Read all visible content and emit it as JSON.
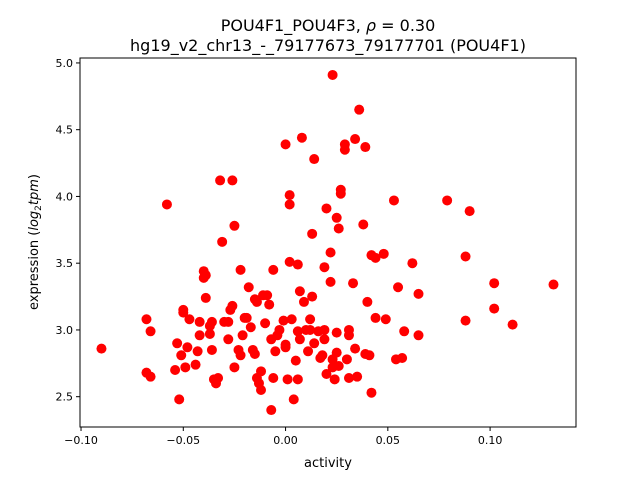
{
  "chart_data": {
    "type": "scatter",
    "title_line1_prefix": "POU4F1_POU4F3, ",
    "title_rho_symbol": "ρ",
    "title_rho_value": " = 0.30",
    "title_line2": "hg19_v2_chr13_-_79177673_79177701 (POU4F1)",
    "xlabel": "activity",
    "ylabel_prefix": "expression (",
    "ylabel_log": "log",
    "ylabel_sub": "2",
    "ylabel_tpm": "tpm",
    "ylabel_suffix": ")",
    "xlim": [
      -0.1005,
      0.142
    ],
    "ylim": [
      2.273,
      5.037
    ],
    "xticks": [
      -0.1,
      -0.05,
      0.0,
      0.05,
      0.1
    ],
    "xtick_labels": [
      "−0.10",
      "−0.05",
      "0.00",
      "0.05",
      "0.10"
    ],
    "yticks": [
      2.5,
      3.0,
      3.5,
      4.0,
      4.5,
      5.0
    ],
    "ytick_labels": [
      "2.5",
      "3.0",
      "3.5",
      "4.0",
      "4.5",
      "5.0"
    ],
    "grid": false,
    "marker_color": "#ff0000",
    "points": [
      [
        -0.09,
        2.86
      ],
      [
        -0.068,
        3.08
      ],
      [
        -0.066,
        2.99
      ],
      [
        -0.068,
        2.68
      ],
      [
        -0.066,
        2.65
      ],
      [
        -0.058,
        3.94
      ],
      [
        -0.054,
        2.7
      ],
      [
        -0.053,
        2.9
      ],
      [
        -0.051,
        2.81
      ],
      [
        -0.05,
        3.13
      ],
      [
        -0.05,
        3.15
      ],
      [
        -0.048,
        2.87
      ],
      [
        -0.047,
        3.08
      ],
      [
        -0.049,
        2.72
      ],
      [
        -0.044,
        2.74
      ],
      [
        -0.043,
        2.84
      ],
      [
        -0.042,
        2.96
      ],
      [
        -0.042,
        3.06
      ],
      [
        -0.04,
        3.39
      ],
      [
        -0.04,
        3.44
      ],
      [
        -0.039,
        3.41
      ],
      [
        -0.039,
        3.24
      ],
      [
        -0.037,
        3.03
      ],
      [
        -0.037,
        2.97
      ],
      [
        -0.036,
        3.06
      ],
      [
        -0.036,
        2.85
      ],
      [
        -0.035,
        2.63
      ],
      [
        -0.034,
        2.6
      ],
      [
        -0.033,
        2.64
      ],
      [
        -0.032,
        4.12
      ],
      [
        -0.031,
        3.66
      ],
      [
        -0.03,
        3.06
      ],
      [
        -0.028,
        2.93
      ],
      [
        -0.028,
        3.06
      ],
      [
        -0.027,
        3.15
      ],
      [
        -0.026,
        3.18
      ],
      [
        -0.026,
        4.12
      ],
      [
        -0.025,
        3.78
      ],
      [
        -0.025,
        2.72
      ],
      [
        -0.023,
        2.85
      ],
      [
        -0.022,
        2.81
      ],
      [
        -0.022,
        3.45
      ],
      [
        -0.021,
        2.96
      ],
      [
        -0.02,
        3.09
      ],
      [
        -0.019,
        3.09
      ],
      [
        -0.018,
        3.32
      ],
      [
        -0.017,
        3.02
      ],
      [
        -0.016,
        2.85
      ],
      [
        -0.015,
        2.82
      ],
      [
        -0.015,
        3.23
      ],
      [
        -0.014,
        3.21
      ],
      [
        -0.014,
        2.64
      ],
      [
        -0.013,
        2.6
      ],
      [
        -0.012,
        2.69
      ],
      [
        -0.012,
        2.55
      ],
      [
        -0.011,
        3.26
      ],
      [
        -0.01,
        3.05
      ],
      [
        -0.009,
        3.26
      ],
      [
        -0.008,
        3.19
      ],
      [
        -0.007,
        2.4
      ],
      [
        -0.007,
        2.93
      ],
      [
        -0.006,
        2.64
      ],
      [
        -0.006,
        3.45
      ],
      [
        -0.005,
        2.84
      ],
      [
        -0.004,
        2.96
      ],
      [
        -0.003,
        3.0
      ],
      [
        -0.001,
        3.07
      ],
      [
        0.0,
        2.89
      ],
      [
        0.0,
        2.87
      ],
      [
        0.001,
        2.63
      ],
      [
        0.0,
        4.39
      ],
      [
        0.002,
        4.01
      ],
      [
        0.002,
        3.94
      ],
      [
        0.002,
        3.51
      ],
      [
        0.003,
        3.08
      ],
      [
        0.004,
        2.48
      ],
      [
        0.005,
        2.77
      ],
      [
        0.006,
        2.63
      ],
      [
        0.006,
        2.99
      ],
      [
        0.007,
        2.93
      ],
      [
        0.006,
        3.49
      ],
      [
        0.007,
        3.29
      ],
      [
        0.008,
        4.44
      ],
      [
        0.009,
        3.21
      ],
      [
        0.01,
        3.0
      ],
      [
        0.011,
        2.84
      ],
      [
        0.012,
        3.0
      ],
      [
        0.012,
        3.08
      ],
      [
        0.013,
        3.25
      ],
      [
        0.013,
        3.72
      ],
      [
        0.014,
        4.28
      ],
      [
        0.014,
        2.9
      ],
      [
        0.016,
        2.99
      ],
      [
        0.017,
        2.79
      ],
      [
        0.018,
        2.81
      ],
      [
        0.019,
        3.0
      ],
      [
        0.019,
        2.93
      ],
      [
        0.019,
        3.47
      ],
      [
        0.02,
        3.91
      ],
      [
        0.02,
        2.67
      ],
      [
        0.022,
        3.36
      ],
      [
        0.022,
        3.58
      ],
      [
        0.023,
        2.78
      ],
      [
        0.023,
        2.72
      ],
      [
        0.024,
        2.63
      ],
      [
        0.025,
        2.83
      ],
      [
        0.025,
        2.98
      ],
      [
        0.025,
        3.84
      ],
      [
        0.026,
        3.76
      ],
      [
        0.026,
        2.73
      ],
      [
        0.027,
        4.05
      ],
      [
        0.027,
        4.02
      ],
      [
        0.023,
        4.91
      ],
      [
        0.029,
        4.39
      ],
      [
        0.029,
        4.35
      ],
      [
        0.03,
        2.78
      ],
      [
        0.031,
        3.0
      ],
      [
        0.031,
        2.96
      ],
      [
        0.033,
        3.35
      ],
      [
        0.034,
        4.43
      ],
      [
        0.036,
        4.65
      ],
      [
        0.038,
        3.79
      ],
      [
        0.039,
        4.37
      ],
      [
        0.039,
        2.82
      ],
      [
        0.04,
        3.21
      ],
      [
        0.041,
        2.81
      ],
      [
        0.042,
        3.56
      ],
      [
        0.044,
        3.54
      ],
      [
        0.044,
        3.09
      ],
      [
        0.048,
        3.57
      ],
      [
        0.049,
        3.08
      ],
      [
        0.055,
        3.32
      ],
      [
        0.053,
        3.97
      ],
      [
        0.054,
        2.78
      ],
      [
        0.057,
        2.79
      ],
      [
        0.058,
        2.99
      ],
      [
        0.062,
        3.5
      ],
      [
        0.065,
        3.27
      ],
      [
        0.065,
        2.96
      ],
      [
        0.079,
        3.97
      ],
      [
        0.088,
        3.07
      ],
      [
        0.088,
        3.55
      ],
      [
        0.09,
        3.89
      ],
      [
        0.102,
        3.35
      ],
      [
        0.102,
        3.16
      ],
      [
        0.111,
        3.04
      ],
      [
        0.131,
        3.34
      ],
      [
        0.042,
        2.53
      ],
      [
        0.035,
        2.65
      ],
      [
        0.031,
        2.64
      ],
      [
        0.034,
        2.86
      ],
      [
        -0.052,
        2.48
      ]
    ]
  }
}
